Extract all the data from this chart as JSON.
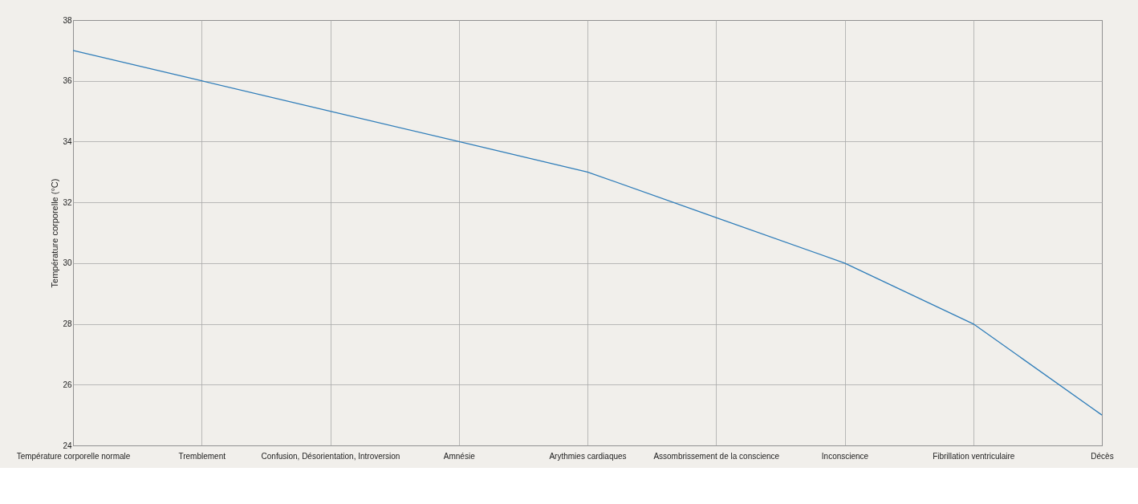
{
  "chart_data": {
    "type": "line",
    "ylabel": "Température corporelle (°C)",
    "categories": [
      "Température corporelle normale",
      "Tremblement",
      "Confusion, Désorientation, Introversion",
      "Amnésie",
      "Arythmies cardiaques",
      "Assombrissement de la conscience",
      "Inconscience",
      "Fibrillation ventriculaire",
      "Décès"
    ],
    "series": [
      {
        "color": "#2f7db9",
        "values": [
          37,
          36,
          35,
          34,
          33,
          31.5,
          30,
          28,
          25
        ]
      }
    ],
    "ylim": [
      24,
      38
    ],
    "yticks": [
      24,
      26,
      28,
      30,
      32,
      34,
      36,
      38
    ],
    "grid": true,
    "marker": "none",
    "line_style": "solid"
  }
}
